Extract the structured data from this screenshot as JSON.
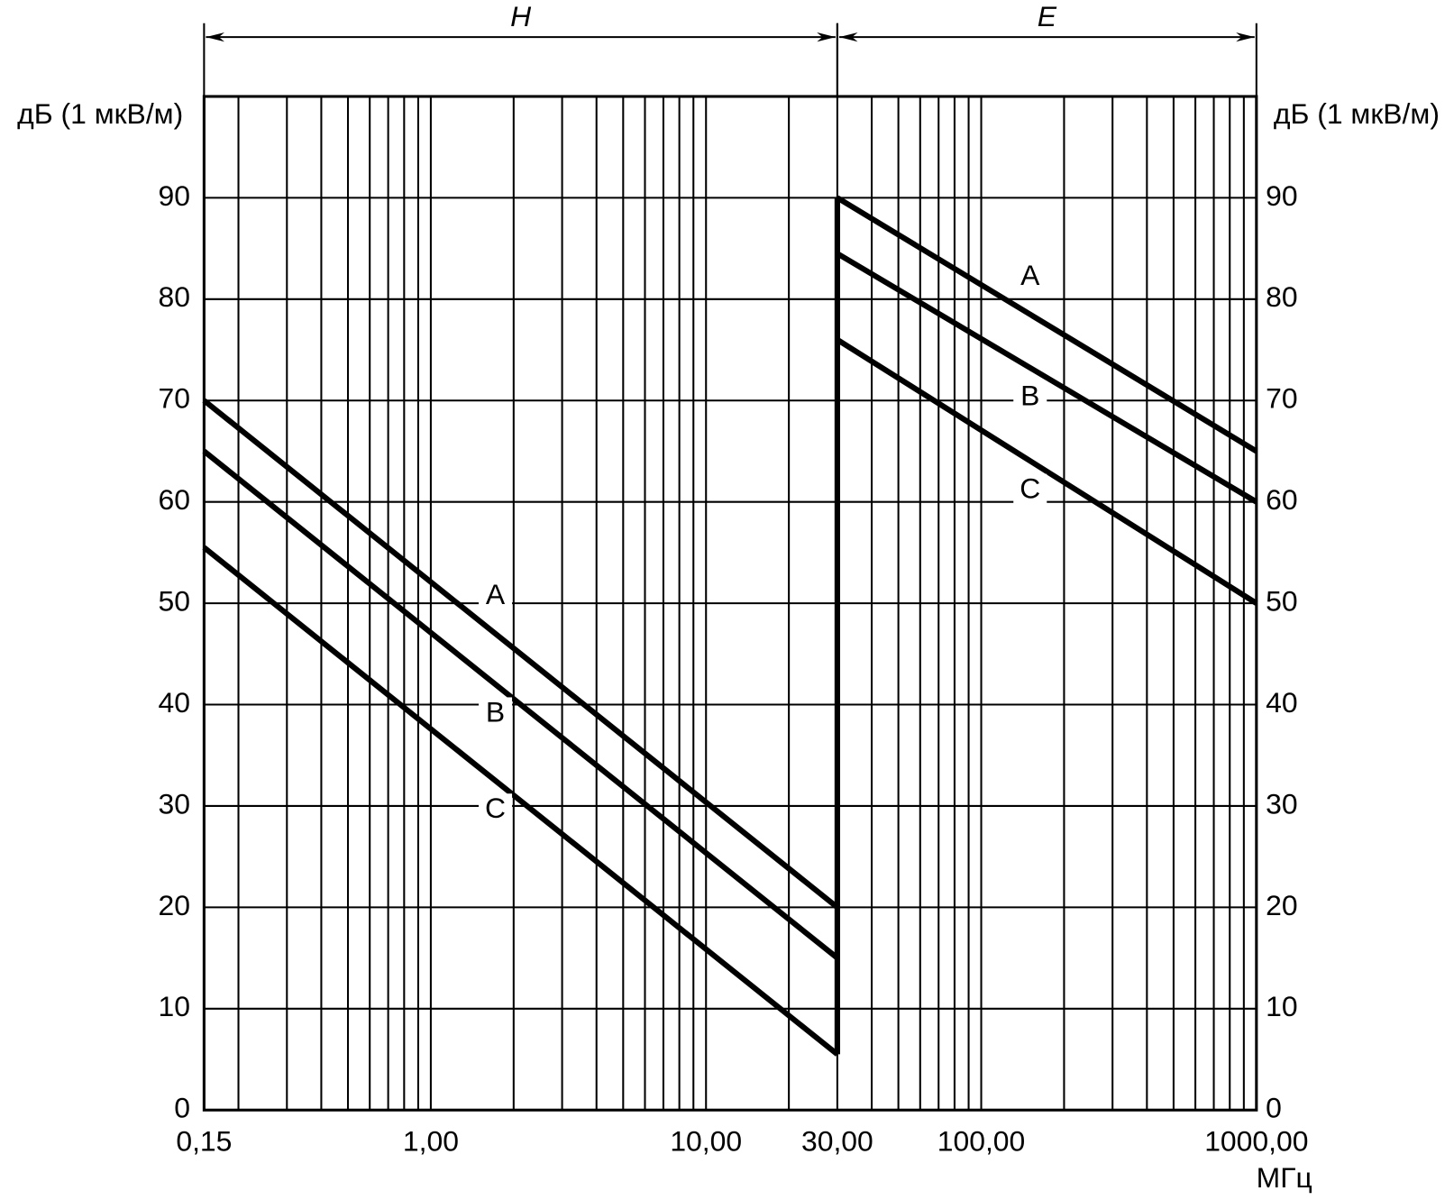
{
  "chart_data": {
    "type": "line",
    "y_label": "дБ (1 мкВ/м)",
    "x_label": "МГц",
    "xscale": "log",
    "xlim": [
      0.15,
      1000
    ],
    "ylim": [
      0,
      100
    ],
    "xticks": [
      {
        "value": 0.15,
        "label": "0,15"
      },
      {
        "value": 1,
        "label": "1,00"
      },
      {
        "value": 10,
        "label": "10,00"
      },
      {
        "value": 30,
        "label": "30,00"
      },
      {
        "value": 100,
        "label": "100,00"
      },
      {
        "value": 1000,
        "label": "1000,00"
      }
    ],
    "yticks": [
      0,
      10,
      20,
      30,
      40,
      50,
      60,
      70,
      80,
      90
    ],
    "grid": true,
    "color": "#000000",
    "bands": [
      {
        "label": "H",
        "from": 0.15,
        "to": 30
      },
      {
        "label": "E",
        "from": 30,
        "to": 1000
      }
    ],
    "series": [
      {
        "name": "A",
        "x": [
          0.15,
          30
        ],
        "values": [
          70,
          20
        ]
      },
      {
        "name": "B",
        "x": [
          0.15,
          30
        ],
        "values": [
          65,
          15
        ]
      },
      {
        "name": "C",
        "x": [
          0.15,
          30
        ],
        "values": [
          55.5,
          5.5
        ]
      },
      {
        "name": "A",
        "x": [
          30,
          1000
        ],
        "values": [
          90,
          65
        ]
      },
      {
        "name": "B",
        "x": [
          30,
          1000
        ],
        "values": [
          84.5,
          60
        ]
      },
      {
        "name": "C",
        "x": [
          30,
          1000
        ],
        "values": [
          76,
          50
        ]
      }
    ]
  }
}
